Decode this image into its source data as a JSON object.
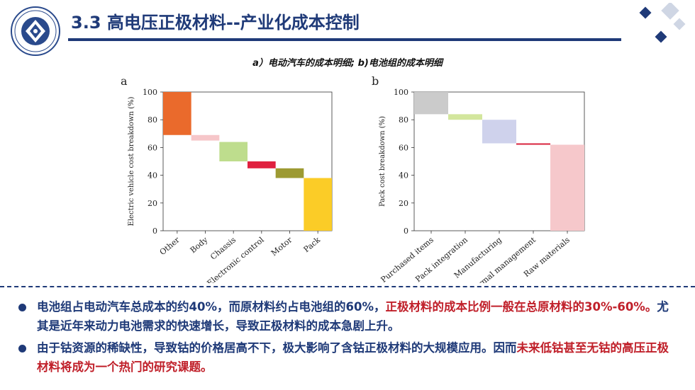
{
  "header": {
    "title": "3.3 高电压正极材料--产业化成本控制",
    "subtitle": "a）电动汽车的成本明细; b)电池组的成本明细"
  },
  "colors": {
    "primary": "#1f3a78",
    "highlight": "#c0202a"
  },
  "chart_data": [
    {
      "type": "bar",
      "panel_label": "a",
      "ylabel": "Electric vehicle cost breakdown (%)",
      "ylim": [
        0,
        100
      ],
      "yticks": [
        0,
        20,
        40,
        60,
        80,
        100
      ],
      "categories": [
        "Other",
        "Body",
        "Chassis",
        "Electronic control",
        "Motor",
        "Pack"
      ],
      "segments": [
        {
          "category": "Other",
          "from": 69,
          "to": 100,
          "color": "#ea6a2c"
        },
        {
          "category": "Body",
          "from": 65,
          "to": 69,
          "color": "#f6c6c9"
        },
        {
          "category": "Chassis",
          "from": 50,
          "to": 64,
          "color": "#bedd8d"
        },
        {
          "category": "Electronic control",
          "from": 45,
          "to": 50,
          "color": "#e0203f"
        },
        {
          "category": "Motor",
          "from": 38,
          "to": 45,
          "color": "#9d9a32"
        },
        {
          "category": "Pack",
          "from": 0,
          "to": 38,
          "color": "#fbcc27"
        }
      ]
    },
    {
      "type": "bar",
      "panel_label": "b",
      "ylabel": "Pack cost breakdown (%)",
      "ylim": [
        0,
        100
      ],
      "yticks": [
        0,
        20,
        40,
        60,
        80,
        100
      ],
      "categories": [
        "Purchased items",
        "Pack integration",
        "Manufacturing",
        "Thermal management",
        "Raw materials"
      ],
      "segments": [
        {
          "category": "Purchased items",
          "from": 84,
          "to": 100,
          "color": "#cbcbcb"
        },
        {
          "category": "Pack integration",
          "from": 80,
          "to": 84,
          "color": "#d3e69d"
        },
        {
          "category": "Manufacturing",
          "from": 63,
          "to": 80,
          "color": "#cfd2ec"
        },
        {
          "category": "Thermal management",
          "from": 62,
          "to": 63,
          "color": "#d8203a"
        },
        {
          "category": "Raw materials",
          "from": 0,
          "to": 62,
          "color": "#f6c8cb"
        }
      ]
    }
  ],
  "bullets": [
    {
      "parts": [
        {
          "text": "电池组占电动汽车总成本的约40%，而原材料约占电池组的60%，",
          "highlight": false
        },
        {
          "text": "正极材料的成本比例一般在总原材料的30%-60%。",
          "highlight": true
        },
        {
          "text": "尤其是近年来动力电池需求的快速增长，导致正极材料的成本急剧上升。",
          "highlight": false
        }
      ]
    },
    {
      "parts": [
        {
          "text": "由于钴资源的稀缺性，导致钴的价格居高不下，极大影响了含钴正极材料的大规模应用。因而",
          "highlight": false
        },
        {
          "text": "未来低钴甚至无钴的高压正极材料将成为一个热门的研究课题。",
          "highlight": true
        }
      ]
    }
  ]
}
